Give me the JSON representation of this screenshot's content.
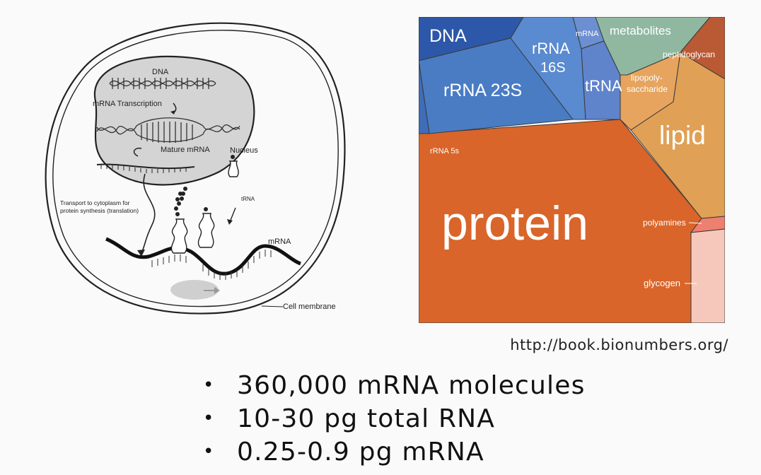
{
  "cell_diagram": {
    "labels": {
      "dna": "DNA",
      "transcription": "mRNA Transcription",
      "mature_mrna": "Mature mRNA",
      "nucleus": "Nucleus",
      "transport_line1": "Transport to cytoplasm for",
      "transport_line2": "protein synthesis (translation)",
      "trna": "tRNA",
      "mrna": "mRNA",
      "cell_membrane": "Cell membrane"
    }
  },
  "treemap": {
    "cells": [
      {
        "key": "dna",
        "label": "DNA",
        "color": "#2d57a8"
      },
      {
        "key": "rrna23s",
        "label": "rRNA 23S",
        "color": "#4a7cc4"
      },
      {
        "key": "rrna16s",
        "label_line1": "rRNA",
        "label_line2": "16S",
        "color": "#5a8ad0"
      },
      {
        "key": "mrna",
        "label": "mRNA",
        "color": "#6b8fd0"
      },
      {
        "key": "trna",
        "label": "tRNA",
        "color": "#5f84cc"
      },
      {
        "key": "rrna5s",
        "label": "rRNA 5s",
        "color": "#3f6db9"
      },
      {
        "key": "metabolites",
        "label": "metabolites",
        "color": "#90b8a0"
      },
      {
        "key": "peptidoglycan",
        "label": "peptidoglycan",
        "color": "#b95a35"
      },
      {
        "key": "lipopolysaccharide",
        "label_line1": "lipopoly-",
        "label_line2": "saccharide",
        "color": "#e6a45e"
      },
      {
        "key": "lipid",
        "label": "lipid",
        "color": "#e0a055"
      },
      {
        "key": "protein",
        "label": "protein",
        "color": "#d9652a"
      },
      {
        "key": "polyamines",
        "label": "polyamines",
        "color": "#ee8070"
      },
      {
        "key": "glycogen",
        "label": "glycogen",
        "color": "#f6c8bc"
      }
    ],
    "border_color": "#444444"
  },
  "source_url": "http://book.bionumbers.org/",
  "bullets": [
    "360,000 mRNA molecules",
    "10-30 pg total RNA",
    "0.25-0.9 pg mRNA"
  ],
  "bullet_symbol": "•"
}
